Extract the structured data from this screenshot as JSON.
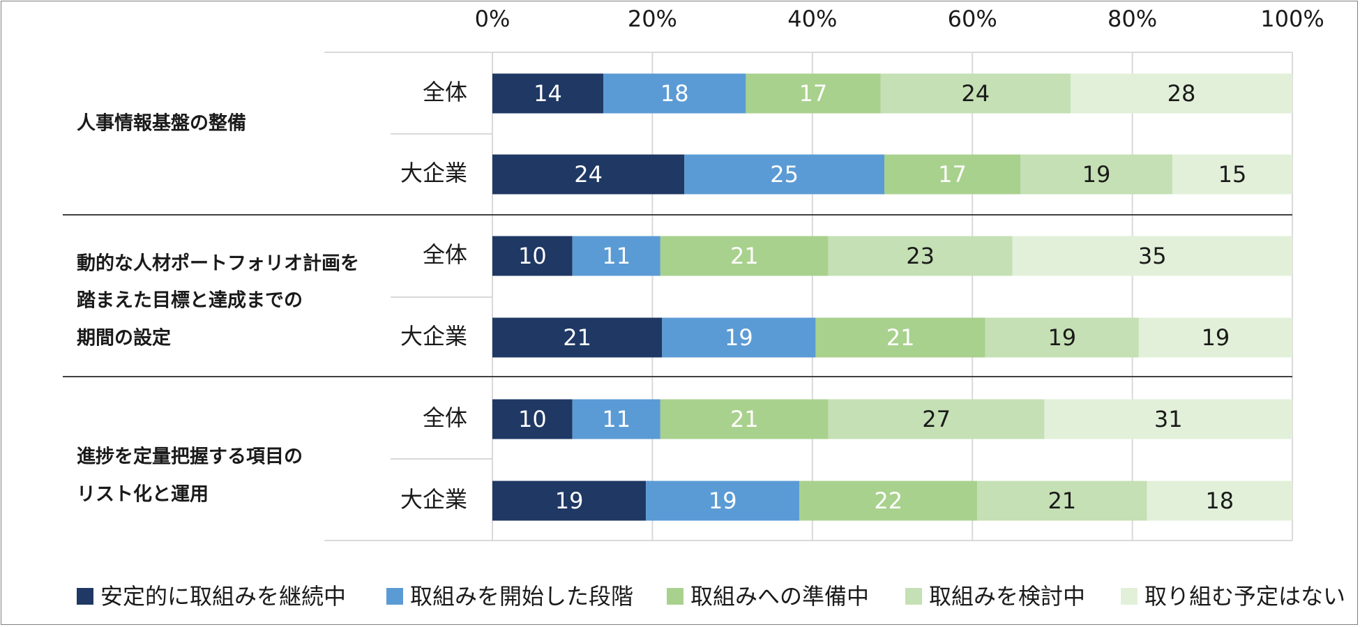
{
  "chart_data": {
    "type": "bar",
    "orientation": "horizontal",
    "stacked": true,
    "xlim": [
      0,
      100
    ],
    "x_ticks": [
      "0%",
      "20%",
      "40%",
      "60%",
      "80%",
      "100%"
    ],
    "legend_position": "bottom",
    "series": [
      {
        "name": "安定的に取組みを継続中",
        "color": "#1f3864"
      },
      {
        "name": "取組みを開始した段階",
        "color": "#5b9bd5"
      },
      {
        "name": "取組みへの準備中",
        "color": "#a9d18e"
      },
      {
        "name": "取組みを検討中",
        "color": "#c5e0b4"
      },
      {
        "name": "取り組む予定はない",
        "color": "#e2f0d9"
      }
    ],
    "groups": [
      {
        "label_lines": [
          "人事情報基盤の整備"
        ],
        "rows": [
          {
            "label": "全体",
            "values": [
              14,
              18,
              17,
              24,
              28
            ]
          },
          {
            "label": "大企業",
            "values": [
              24,
              25,
              17,
              19,
              15
            ]
          }
        ]
      },
      {
        "label_lines": [
          "動的な人材ポートフォリオ計画を",
          "踏まえた目標と達成までの",
          "期間の設定"
        ],
        "rows": [
          {
            "label": "全体",
            "values": [
              10,
              11,
              21,
              23,
              35
            ]
          },
          {
            "label": "大企業",
            "values": [
              21,
              19,
              21,
              19,
              19
            ]
          }
        ]
      },
      {
        "label_lines": [
          "進捗を定量把握する項目の",
          "リスト化と運用"
        ],
        "rows": [
          {
            "label": "全体",
            "values": [
              10,
              11,
              21,
              27,
              31
            ]
          },
          {
            "label": "大企業",
            "values": [
              19,
              19,
              22,
              21,
              18
            ]
          }
        ]
      }
    ],
    "label_colors": [
      "#ffffff",
      "#ffffff",
      "#ffffff",
      "#1a1a1a",
      "#1a1a1a"
    ]
  }
}
